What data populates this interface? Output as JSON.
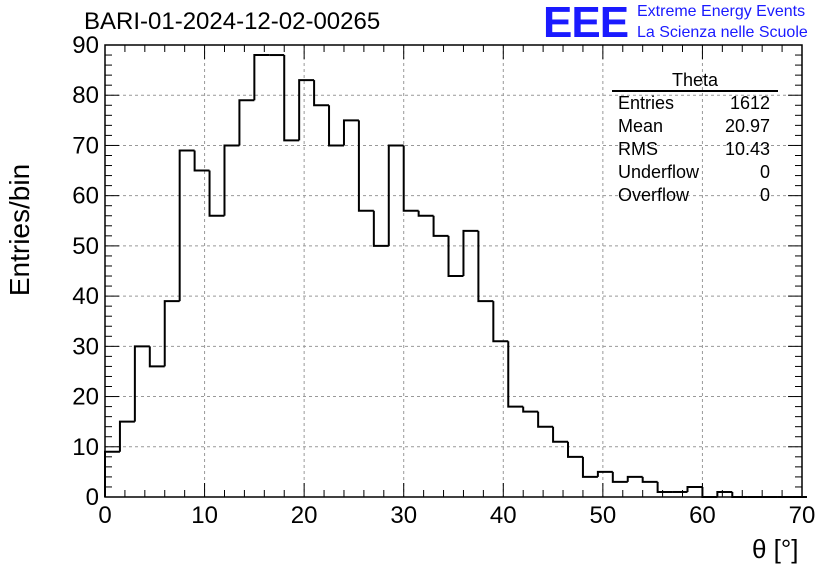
{
  "title": "BARI-01-2024-12-02-00265",
  "logo": {
    "mark": "EEE",
    "line1": "Extreme Energy Events",
    "line2": "La Scienza nelle Scuole",
    "color": "#1a1aff"
  },
  "stats_box": {
    "title": "Theta",
    "rows": [
      {
        "label": "Entries",
        "value": "1612"
      },
      {
        "label": "Mean",
        "value": "20.97"
      },
      {
        "label": "RMS",
        "value": "10.43"
      },
      {
        "label": "Underflow",
        "value": "0"
      },
      {
        "label": "Overflow",
        "value": "0"
      }
    ]
  },
  "chart_data": {
    "type": "bar",
    "histogram": true,
    "xlabel": "θ [°]",
    "ylabel": "Entries/bin",
    "xlim": [
      0,
      70
    ],
    "ylim": [
      0,
      90
    ],
    "grid": true,
    "bin_width": 1.5,
    "bin_edges_start": 0,
    "x_ticks": [
      0,
      10,
      20,
      30,
      40,
      50,
      60,
      70
    ],
    "y_ticks": [
      0,
      10,
      20,
      30,
      40,
      50,
      60,
      70,
      80,
      90
    ],
    "values": [
      9,
      15,
      30,
      26,
      39,
      69,
      65,
      56,
      70,
      79,
      88,
      88,
      71,
      83,
      78,
      70,
      75,
      57,
      50,
      70,
      57,
      56,
      52,
      44,
      53,
      39,
      31,
      18,
      17,
      14,
      11,
      8,
      4,
      5,
      3,
      4,
      3,
      1,
      1,
      2,
      0,
      1,
      0,
      0,
      0,
      0,
      0
    ]
  }
}
